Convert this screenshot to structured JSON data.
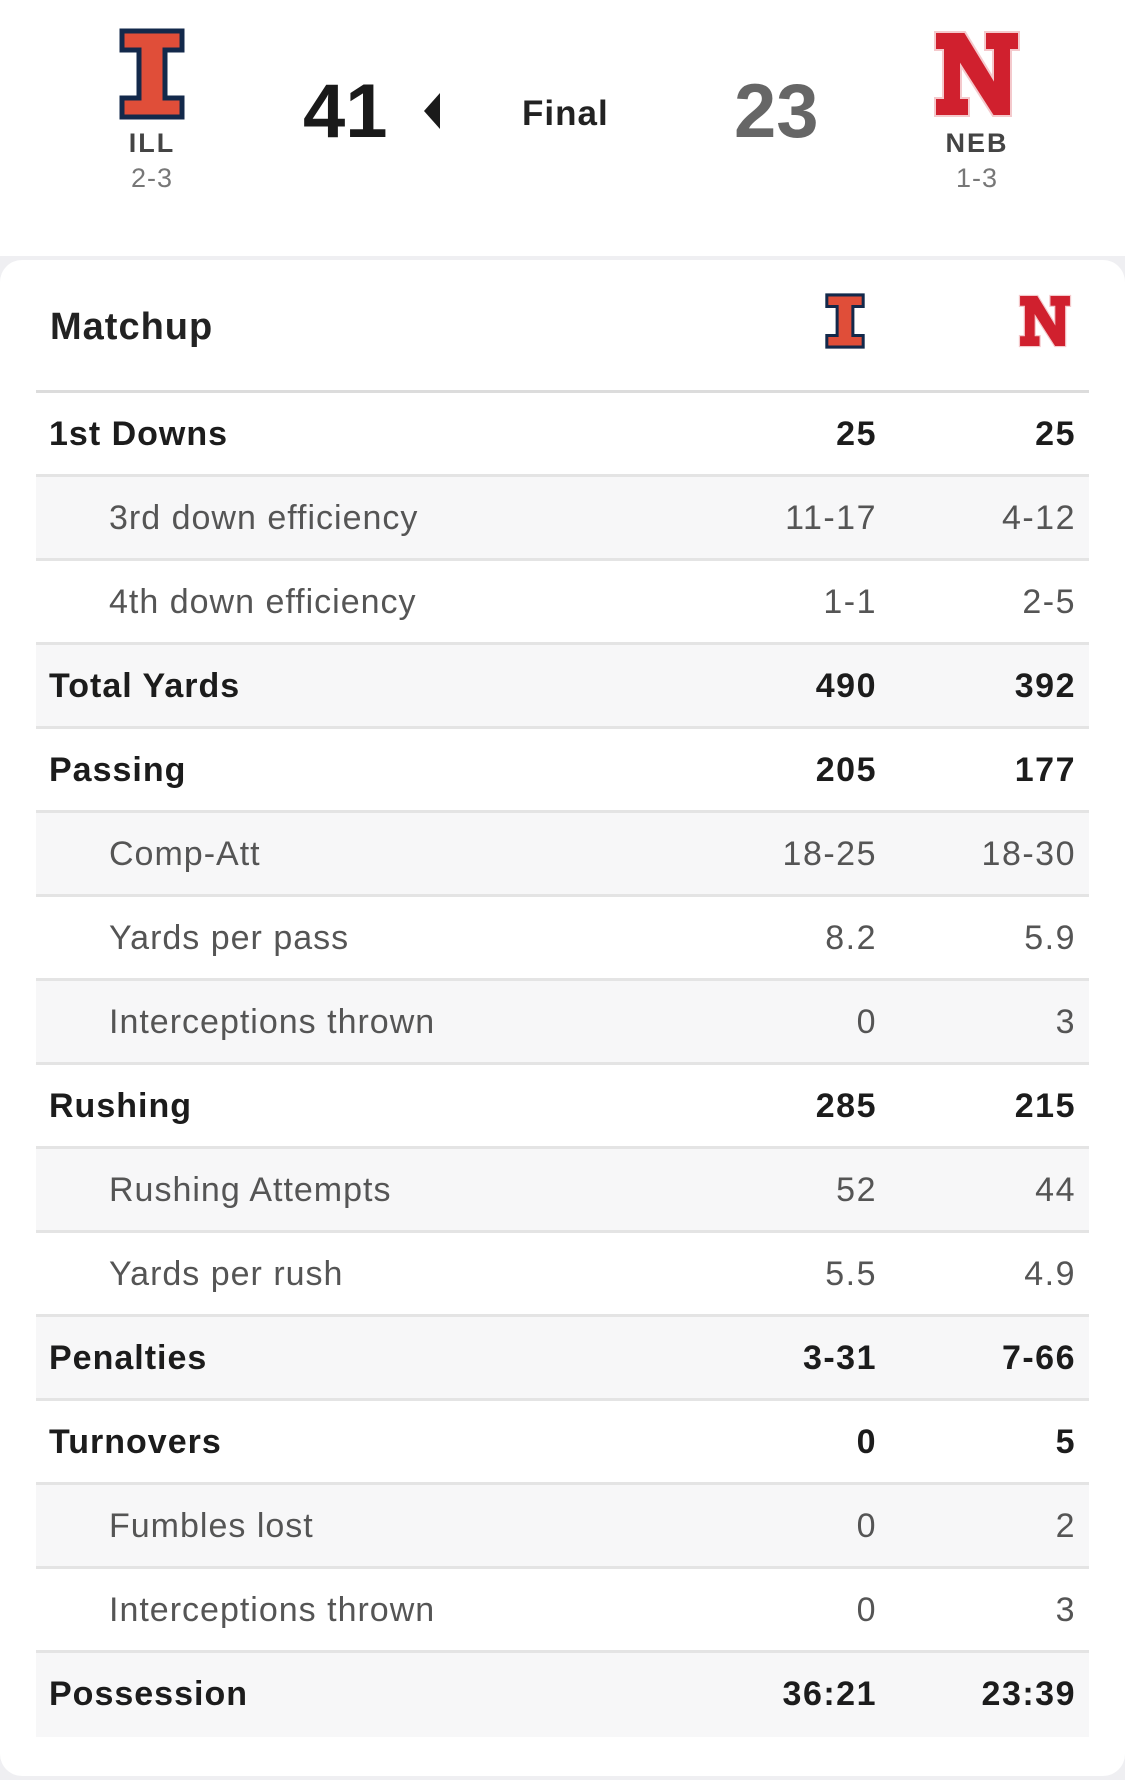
{
  "scoreboard": {
    "status": "Final",
    "home": {
      "abbr": "ILL",
      "record": "2-3",
      "score": "41",
      "color": "#e04e39",
      "logo": "illinois-block-i-logo"
    },
    "away": {
      "abbr": "NEB",
      "record": "1-3",
      "score": "23",
      "color": "#d0202e",
      "logo": "nebraska-n-logo"
    }
  },
  "matchup": {
    "title": "Matchup",
    "rows": [
      {
        "label": "1st Downs",
        "home": "25",
        "away": "25",
        "style": "bold"
      },
      {
        "label": "3rd down efficiency",
        "home": "11-17",
        "away": "4-12",
        "style": "sub"
      },
      {
        "label": "4th down efficiency",
        "home": "1-1",
        "away": "2-5",
        "style": "sub"
      },
      {
        "label": "Total Yards",
        "home": "490",
        "away": "392",
        "style": "bold"
      },
      {
        "label": "Passing",
        "home": "205",
        "away": "177",
        "style": "bold"
      },
      {
        "label": "Comp-Att",
        "home": "18-25",
        "away": "18-30",
        "style": "sub"
      },
      {
        "label": "Yards per pass",
        "home": "8.2",
        "away": "5.9",
        "style": "sub"
      },
      {
        "label": "Interceptions thrown",
        "home": "0",
        "away": "3",
        "style": "sub"
      },
      {
        "label": "Rushing",
        "home": "285",
        "away": "215",
        "style": "bold"
      },
      {
        "label": "Rushing Attempts",
        "home": "52",
        "away": "44",
        "style": "sub"
      },
      {
        "label": "Yards per rush",
        "home": "5.5",
        "away": "4.9",
        "style": "sub"
      },
      {
        "label": "Penalties",
        "home": "3-31",
        "away": "7-66",
        "style": "bold"
      },
      {
        "label": "Turnovers",
        "home": "0",
        "away": "5",
        "style": "bold"
      },
      {
        "label": "Fumbles lost",
        "home": "0",
        "away": "2",
        "style": "sub"
      },
      {
        "label": "Interceptions thrown",
        "home": "0",
        "away": "3",
        "style": "sub"
      },
      {
        "label": "Possession",
        "home": "36:21",
        "away": "23:39",
        "style": "bold"
      }
    ]
  }
}
